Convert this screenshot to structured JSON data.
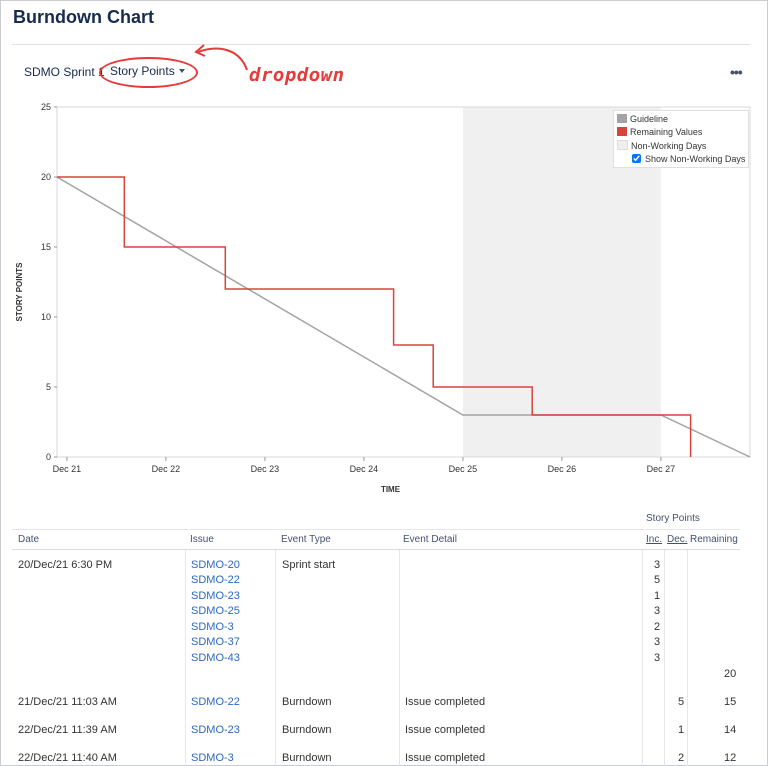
{
  "page": {
    "title": "Burndown Chart"
  },
  "toolbar": {
    "sprint": "SDMO Sprint 1",
    "estimate": "Story Points",
    "annotation": "dropdown",
    "more": "•••"
  },
  "colors": {
    "guideline": "#a3a3a3",
    "remaining": "#d6453d",
    "nonworking": "#f0f0f0",
    "link": "#2b68c4",
    "annotation": "#e53b3b"
  },
  "legend": {
    "guideline": "Guideline",
    "remaining": "Remaining Values",
    "nonworking": "Non-Working Days",
    "show_nonworking": "Show Non-Working Days"
  },
  "chart_data": {
    "type": "line",
    "ylabel": "STORY POINTS",
    "xlabel": "TIME",
    "ylim": [
      0,
      25
    ],
    "yticks": [
      "0",
      "5",
      "10",
      "15",
      "20",
      "25"
    ],
    "xticks": [
      "Dec 21",
      "Dec 22",
      "Dec 23",
      "Dec 24",
      "Dec 25",
      "Dec 26",
      "Dec 27"
    ],
    "xlim_days": [
      20.9,
      27.9
    ],
    "nonworking_days": [
      25.0,
      27.0
    ],
    "series": [
      {
        "name": "Guideline",
        "points": [
          [
            20.9,
            20
          ],
          [
            25.0,
            3
          ],
          [
            27.0,
            3
          ],
          [
            27.9,
            0
          ]
        ]
      },
      {
        "name": "Remaining Values",
        "step": true,
        "points": [
          [
            20.9,
            20
          ],
          [
            21.58,
            15
          ],
          [
            22.6,
            12
          ],
          [
            24.3,
            8
          ],
          [
            24.7,
            5
          ],
          [
            25.7,
            3
          ],
          [
            27.3,
            0
          ]
        ]
      }
    ]
  },
  "table": {
    "headers": {
      "date": "Date",
      "issue": "Issue",
      "event_type": "Event Type",
      "event_detail": "Event Detail",
      "story_points": "Story Points",
      "inc": "Inc.",
      "dec": "Dec.",
      "remaining": "Remaining"
    },
    "start": {
      "date": "20/Dec/21 6:30 PM",
      "event_type": "Sprint start",
      "issues": [
        {
          "key": "SDMO-20",
          "inc": "3"
        },
        {
          "key": "SDMO-22",
          "inc": "5"
        },
        {
          "key": "SDMO-23",
          "inc": "1"
        },
        {
          "key": "SDMO-25",
          "inc": "3"
        },
        {
          "key": "SDMO-3",
          "inc": "2"
        },
        {
          "key": "SDMO-37",
          "inc": "3"
        },
        {
          "key": "SDMO-43",
          "inc": "3"
        }
      ],
      "remaining": "20"
    },
    "rows": [
      {
        "date": "21/Dec/21 11:03 AM",
        "issue": "SDMO-22",
        "event_type": "Burndown",
        "detail": "Issue completed",
        "dec": "5",
        "remaining": "15"
      },
      {
        "date": "22/Dec/21 11:39 AM",
        "issue": "SDMO-23",
        "event_type": "Burndown",
        "detail": "Issue completed",
        "dec": "1",
        "remaining": "14"
      },
      {
        "date": "22/Dec/21 11:40 AM",
        "issue": "SDMO-3",
        "event_type": "Burndown",
        "detail": "Issue completed",
        "dec": "2",
        "remaining": "12"
      }
    ]
  }
}
